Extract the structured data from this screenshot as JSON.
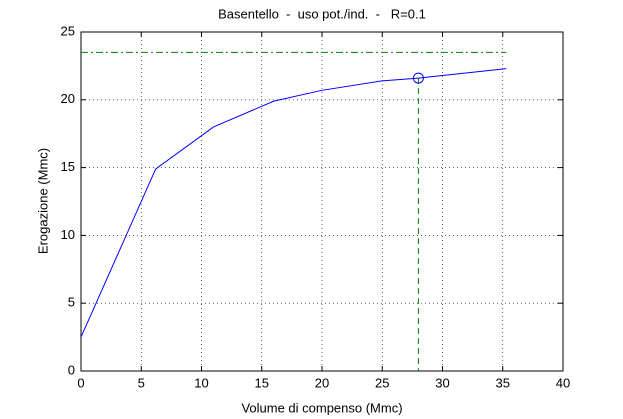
{
  "chart_data": {
    "type": "line",
    "title": "Basentello  -  uso pot./ind.  -   R=0.1",
    "xlabel": "Volume di compenso (Mmc)",
    "ylabel": "Erogazione (Mmc)",
    "series": [
      {
        "color": "#0000ff",
        "x": [
          0,
          6.2,
          11,
          16,
          20,
          25,
          28,
          35.3
        ],
        "values": [
          2.5,
          14.9,
          18,
          19.9,
          20.7,
          21.4,
          21.6,
          22.3
        ]
      }
    ],
    "marker": {
      "x": 28,
      "y": 21.6,
      "color": "#0000ff"
    },
    "max_line": {
      "y": 23.5,
      "x_end": 35.3,
      "color": "#008000"
    },
    "xlim": [
      0,
      40
    ],
    "xticks": [
      0,
      5,
      10,
      15,
      20,
      25,
      30,
      35,
      40
    ],
    "ylim": [
      0,
      25
    ],
    "yticks": [
      0,
      5,
      10,
      15,
      20,
      25
    ],
    "grid": true
  }
}
